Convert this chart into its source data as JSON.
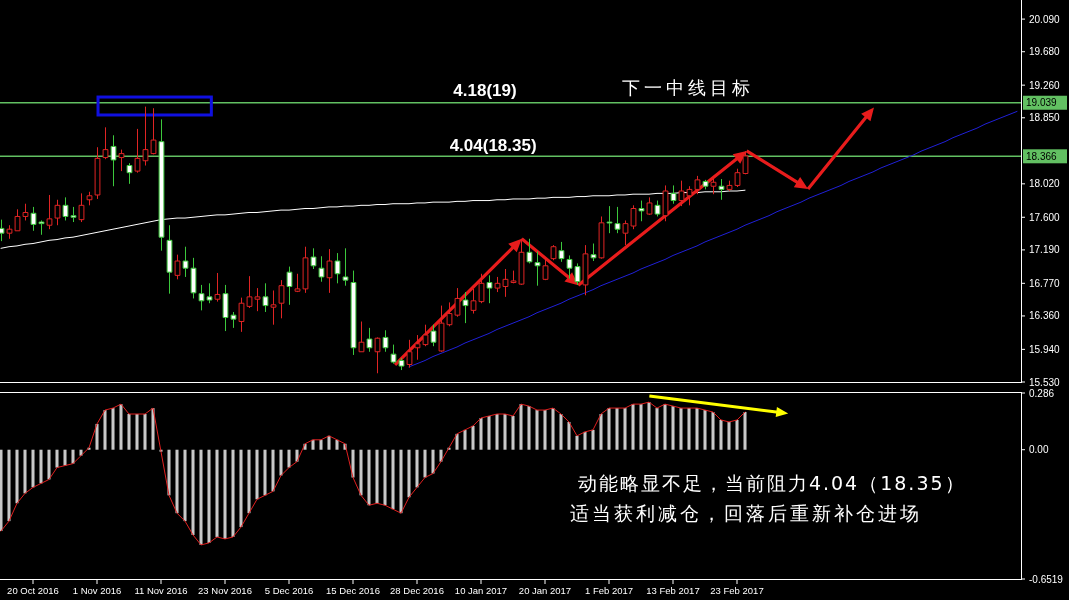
{
  "chart_data": [
    {
      "type": "candlestick",
      "categories": [
        null,
        null,
        null,
        null,
        null,
        null,
        null,
        null,
        null,
        null,
        null,
        null,
        null,
        null,
        null,
        null,
        null,
        null,
        null,
        null,
        null,
        null,
        null,
        null,
        null,
        null,
        null,
        null,
        null,
        null,
        null,
        null,
        null,
        null,
        null,
        null,
        null,
        null,
        null,
        null,
        null,
        null,
        null,
        null,
        null,
        null,
        null,
        null,
        null,
        null,
        null,
        null,
        null,
        null,
        null,
        null,
        null,
        null,
        null,
        null,
        null,
        null,
        null,
        null,
        null,
        null,
        null,
        null,
        null,
        null,
        null,
        null,
        null,
        null,
        null,
        null,
        null,
        null,
        null,
        null,
        null,
        null,
        null,
        null,
        null,
        null,
        null,
        null,
        null,
        null,
        null,
        null,
        null,
        null,
        null,
        null,
        null,
        null,
        null,
        null,
        null,
        null,
        null,
        null,
        null,
        null,
        null,
        null,
        null,
        null,
        null,
        null,
        null,
        null,
        null,
        null,
        null,
        null,
        null,
        null,
        null,
        null,
        null,
        null,
        null,
        null,
        null,
        null
      ],
      "ohlc": [
        [
          17.46,
          17.57,
          17.3,
          17.4
        ],
        [
          17.4,
          17.5,
          17.33,
          17.45
        ],
        [
          17.43,
          17.7,
          17.43,
          17.61
        ],
        [
          17.61,
          17.77,
          17.56,
          17.66
        ],
        [
          17.65,
          17.73,
          17.43,
          17.51
        ],
        [
          17.54,
          17.56,
          17.38,
          17.52
        ],
        [
          17.5,
          17.88,
          17.45,
          17.58
        ],
        [
          17.59,
          17.82,
          17.5,
          17.75
        ],
        [
          17.75,
          17.85,
          17.56,
          17.61
        ],
        [
          17.62,
          17.73,
          17.54,
          17.6
        ],
        [
          17.57,
          17.9,
          17.54,
          17.75
        ],
        [
          17.82,
          17.92,
          17.75,
          17.87
        ],
        [
          17.88,
          18.48,
          17.83,
          18.34
        ],
        [
          18.35,
          18.73,
          18.33,
          18.45
        ],
        [
          18.49,
          18.63,
          17.99,
          18.32
        ],
        [
          18.35,
          18.45,
          18.18,
          18.4
        ],
        [
          18.25,
          18.28,
          18.02,
          18.16
        ],
        [
          18.18,
          18.71,
          18.16,
          18.34
        ],
        [
          18.31,
          18.99,
          18.25,
          18.45
        ],
        [
          18.4,
          18.97,
          18.39,
          18.57
        ],
        [
          18.55,
          18.83,
          17.18,
          17.35
        ],
        [
          17.31,
          17.5,
          16.64,
          16.91
        ],
        [
          16.87,
          17.13,
          16.82,
          17.05
        ],
        [
          17.05,
          17.23,
          16.85,
          16.96
        ],
        [
          16.96,
          17.09,
          16.58,
          16.65
        ],
        [
          16.64,
          16.75,
          16.43,
          16.55
        ],
        [
          16.6,
          16.77,
          16.52,
          16.56
        ],
        [
          16.57,
          16.9,
          16.54,
          16.63
        ],
        [
          16.64,
          16.75,
          16.17,
          16.34
        ],
        [
          16.37,
          16.41,
          16.21,
          16.32
        ],
        [
          16.29,
          16.59,
          16.16,
          16.52
        ],
        [
          16.48,
          16.86,
          16.46,
          16.6
        ],
        [
          16.57,
          16.71,
          16.42,
          16.6
        ],
        [
          16.6,
          16.77,
          16.41,
          16.49
        ],
        [
          16.47,
          16.68,
          16.25,
          16.5
        ],
        [
          16.52,
          16.81,
          16.33,
          16.74
        ],
        [
          16.91,
          16.98,
          16.5,
          16.73
        ],
        [
          16.67,
          16.89,
          16.66,
          16.7
        ],
        [
          16.7,
          17.23,
          16.65,
          17.09
        ],
        [
          17.1,
          17.21,
          16.95,
          16.99
        ],
        [
          16.96,
          17.11,
          16.79,
          16.85
        ],
        [
          16.84,
          17.2,
          16.65,
          17.05
        ],
        [
          17.05,
          17.15,
          16.77,
          16.89
        ],
        [
          16.85,
          17.21,
          16.74,
          16.81
        ],
        [
          16.78,
          16.93,
          15.87,
          15.96
        ],
        [
          15.91,
          16.29,
          15.91,
          16.03
        ],
        [
          16.07,
          16.21,
          15.91,
          15.96
        ],
        [
          15.91,
          16.09,
          15.64,
          16.08
        ],
        [
          16.09,
          16.18,
          15.91,
          15.96
        ],
        [
          15.88,
          16.0,
          15.76,
          15.78
        ],
        [
          15.8,
          15.83,
          15.68,
          15.73
        ],
        [
          15.75,
          16.06,
          15.71,
          15.91
        ],
        [
          15.96,
          16.12,
          15.81,
          16.01
        ],
        [
          16.0,
          16.25,
          15.98,
          16.12
        ],
        [
          16.17,
          16.25,
          15.98,
          16.03
        ],
        [
          15.92,
          16.49,
          15.91,
          16.27
        ],
        [
          16.25,
          16.53,
          16.23,
          16.39
        ],
        [
          16.37,
          16.71,
          16.35,
          16.58
        ],
        [
          16.56,
          16.66,
          16.27,
          16.49
        ],
        [
          16.43,
          16.7,
          16.39,
          16.55
        ],
        [
          16.54,
          16.89,
          16.52,
          16.77
        ],
        [
          16.78,
          16.87,
          16.52,
          16.71
        ],
        [
          16.71,
          16.85,
          16.66,
          16.77
        ],
        [
          16.73,
          16.95,
          16.6,
          16.82
        ],
        [
          16.78,
          16.93,
          16.77,
          16.8
        ],
        [
          16.76,
          17.33,
          16.75,
          17.16
        ],
        [
          17.16,
          17.33,
          17.02,
          17.04
        ],
        [
          17.03,
          17.17,
          16.74,
          16.99
        ],
        [
          16.82,
          17.09,
          16.81,
          16.99
        ],
        [
          17.08,
          17.25,
          17.06,
          17.23
        ],
        [
          17.18,
          17.29,
          17.04,
          17.08
        ],
        [
          17.07,
          17.12,
          16.83,
          16.96
        ],
        [
          16.98,
          17.02,
          16.75,
          16.79
        ],
        [
          16.75,
          17.25,
          16.62,
          17.14
        ],
        [
          17.13,
          17.27,
          17.05,
          17.09
        ],
        [
          17.09,
          17.61,
          17.08,
          17.53
        ],
        [
          17.54,
          17.74,
          17.4,
          17.53
        ],
        [
          17.52,
          17.73,
          17.4,
          17.45
        ],
        [
          17.4,
          17.56,
          17.25,
          17.52
        ],
        [
          17.49,
          17.75,
          17.45,
          17.71
        ],
        [
          17.71,
          17.81,
          17.55,
          17.68
        ],
        [
          17.64,
          17.85,
          17.63,
          17.78
        ],
        [
          17.75,
          17.81,
          17.61,
          17.64
        ],
        [
          17.62,
          18.0,
          17.55,
          17.93
        ],
        [
          17.9,
          18.0,
          17.77,
          17.81
        ],
        [
          17.81,
          18.06,
          17.74,
          17.93
        ],
        [
          17.87,
          17.99,
          17.75,
          17.95
        ],
        [
          17.95,
          18.12,
          17.89,
          18.07
        ],
        [
          18.05,
          18.07,
          17.95,
          17.99
        ],
        [
          17.99,
          18.09,
          17.89,
          18.04
        ],
        [
          17.99,
          18.08,
          17.82,
          17.95
        ],
        [
          17.95,
          18.06,
          17.93,
          18.0
        ],
        [
          18.0,
          18.21,
          17.98,
          18.16
        ],
        [
          18.15,
          18.43,
          18.14,
          18.37
        ],
        null,
        null,
        null,
        null,
        null,
        null,
        null,
        null,
        null,
        null,
        null,
        null,
        null,
        null,
        null,
        null,
        null,
        null,
        null,
        null,
        null,
        null,
        null,
        null,
        null,
        null,
        null,
        null,
        null,
        null,
        null,
        null,
        null,
        null
      ],
      "colors": [
        "#3cc83c",
        "#e02424",
        "#e02424",
        "#e02424",
        "#3cc83c",
        "#3cc83c",
        "#e02424",
        "#e02424",
        "#3cc83c",
        "#3cc83c",
        "#e02424",
        "#e02424",
        "#e02424",
        "#e02424",
        "#3cc83c",
        "#e02424",
        "#3cc83c",
        "#e02424",
        "#e02424",
        "#e02424",
        "#3cc83c",
        "#3cc83c",
        "#e02424",
        "#3cc83c",
        "#3cc83c",
        "#3cc83c",
        "#3cc83c",
        "#e02424",
        "#3cc83c",
        "#3cc83c",
        "#e02424",
        "#e02424",
        "#e02424",
        "#3cc83c",
        "#e02424",
        "#e02424",
        "#3cc83c",
        "#e02424",
        "#e02424",
        "#3cc83c",
        "#3cc83c",
        "#e02424",
        "#3cc83c",
        "#3cc83c",
        "#3cc83c",
        "#e02424",
        "#3cc83c",
        "#e02424",
        "#3cc83c",
        "#3cc83c",
        "#3cc83c",
        "#e02424",
        "#e02424",
        "#e02424",
        "#3cc83c",
        "#e02424",
        "#e02424",
        "#e02424",
        "#3cc83c",
        "#e02424",
        "#e02424",
        "#3cc83c",
        "#e02424",
        "#e02424",
        "#e02424",
        "#e02424",
        "#3cc83c",
        "#3cc83c",
        "#e02424",
        "#e02424",
        "#3cc83c",
        "#3cc83c",
        "#3cc83c",
        "#e02424",
        "#3cc83c",
        "#e02424",
        "#3cc83c",
        "#3cc83c",
        "#e02424",
        "#e02424",
        "#3cc83c",
        "#e02424",
        "#3cc83c",
        "#e02424",
        "#3cc83c",
        "#e02424",
        "#e02424",
        "#e02424",
        "#3cc83c",
        "#e02424",
        "#3cc83c",
        "#e02424",
        "#e02424",
        "#e02424",
        null,
        null,
        null,
        null,
        null,
        null,
        null,
        null,
        null,
        null,
        null,
        null,
        null,
        null,
        null,
        null,
        null,
        null,
        null,
        null,
        null,
        null,
        null,
        null,
        null,
        null,
        null,
        null,
        null,
        null,
        null,
        null,
        null,
        null
      ],
      "series": [
        {
          "type": "line",
          "color": "#ffffff",
          "values": [
            17.21,
            17.23,
            17.24,
            17.26,
            17.27,
            17.29,
            17.31,
            17.32,
            17.34,
            17.35,
            17.37,
            17.39,
            17.41,
            17.43,
            17.45,
            17.47,
            17.49,
            17.51,
            17.53,
            17.55,
            17.57,
            17.58,
            17.59,
            17.59,
            17.6,
            17.61,
            17.62,
            17.63,
            17.63,
            17.64,
            17.65,
            17.66,
            17.66,
            17.67,
            17.68,
            17.69,
            17.69,
            17.7,
            17.71,
            17.71,
            17.72,
            17.73,
            17.73,
            17.74,
            17.74,
            17.75,
            17.75,
            17.76,
            17.76,
            17.77,
            17.77,
            17.77,
            17.78,
            17.78,
            17.79,
            17.79,
            17.79,
            17.8,
            17.8,
            17.81,
            17.81,
            17.81,
            17.82,
            17.82,
            17.83,
            17.83,
            17.83,
            17.84,
            17.84,
            17.85,
            17.85,
            17.85,
            17.86,
            17.86,
            17.87,
            17.87,
            17.87,
            17.88,
            17.88,
            17.89,
            17.89,
            17.89,
            17.9,
            17.9,
            17.9,
            17.91,
            17.91,
            17.91,
            17.92,
            17.92,
            17.92,
            17.93,
            17.93,
            17.94,
            null,
            null,
            null,
            null,
            null,
            null,
            null,
            null,
            null,
            null,
            null,
            null,
            null,
            null,
            null,
            null,
            null,
            null,
            null,
            null,
            null,
            null,
            null,
            null,
            null,
            null,
            null,
            null,
            null,
            null,
            null,
            null,
            null,
            null
          ]
        },
        {
          "type": "line",
          "color": "#2020d8",
          "values": [
            null,
            null,
            null,
            null,
            null,
            null,
            null,
            null,
            null,
            null,
            null,
            null,
            null,
            null,
            null,
            null,
            null,
            null,
            null,
            null,
            null,
            null,
            null,
            null,
            null,
            null,
            null,
            null,
            null,
            null,
            null,
            null,
            null,
            null,
            null,
            null,
            null,
            null,
            null,
            null,
            null,
            null,
            null,
            null,
            null,
            null,
            null,
            null,
            null,
            null,
            null,
            15.72,
            15.76,
            15.8,
            15.85,
            15.89,
            15.93,
            15.97,
            16.02,
            16.06,
            16.1,
            16.14,
            16.19,
            16.23,
            16.27,
            16.31,
            16.35,
            16.4,
            16.44,
            16.48,
            16.52,
            16.57,
            16.61,
            16.65,
            16.69,
            16.74,
            16.78,
            16.82,
            16.86,
            16.9,
            16.95,
            16.99,
            17.03,
            17.07,
            17.12,
            17.16,
            17.2,
            17.24,
            17.29,
            17.33,
            17.37,
            17.41,
            17.45,
            17.5,
            17.54,
            17.58,
            17.62,
            17.67,
            17.71,
            17.75,
            17.79,
            17.84,
            17.88,
            17.92,
            17.96,
            18.0,
            18.05,
            18.09,
            18.13,
            18.17,
            18.22,
            18.26,
            18.3,
            18.34,
            18.38,
            18.43,
            18.47,
            18.51,
            18.55,
            18.6,
            18.64,
            18.68,
            18.72,
            18.77,
            18.81,
            18.85,
            18.89,
            18.93
          ]
        }
      ],
      "ylim": [
        15.53,
        20.33
      ],
      "yticks": [
        {
          "value": 15.53,
          "label": "15.530"
        },
        {
          "value": 15.94,
          "label": "15.940"
        },
        {
          "value": 16.36,
          "label": "16.360"
        },
        {
          "value": 16.77,
          "label": "16.770"
        },
        {
          "value": 17.19,
          "label": "17.190"
        },
        {
          "value": 17.6,
          "label": "17.600"
        },
        {
          "value": 18.02,
          "label": "18.020"
        },
        {
          "value": 18.85,
          "label": "18.850"
        },
        {
          "value": 19.26,
          "label": "19.260"
        },
        {
          "value": 19.68,
          "label": "19.680"
        },
        {
          "value": 20.09,
          "label": "20.090"
        }
      ],
      "tick_labels": "y",
      "ref_lines": [
        {
          "axis": "y",
          "value": 19.039,
          "label": "19.039",
          "color": "#62c062"
        },
        {
          "axis": "y",
          "value": 18.366,
          "label": "18.366",
          "color": "#62c062"
        }
      ],
      "annotations": [
        "4.18(19)",
        "4.04(18.35)",
        "下一中线目标"
      ]
    },
    {
      "type": "bar",
      "categories": [
        null,
        null,
        null,
        null,
        "20 Oct 2016",
        null,
        null,
        null,
        null,
        null,
        null,
        null,
        "1 Nov 2016",
        null,
        null,
        null,
        null,
        null,
        null,
        null,
        "11 Nov 2016",
        null,
        null,
        null,
        null,
        null,
        null,
        null,
        "23 Nov 2016",
        null,
        null,
        null,
        null,
        null,
        null,
        null,
        "5 Dec 2016",
        null,
        null,
        null,
        null,
        null,
        null,
        null,
        "15 Dec 2016",
        null,
        null,
        null,
        null,
        null,
        null,
        null,
        "28 Dec 2016",
        null,
        null,
        null,
        null,
        null,
        null,
        null,
        "10 Jan 2017",
        null,
        null,
        null,
        null,
        null,
        null,
        null,
        "20 Jan 2017",
        null,
        null,
        null,
        null,
        null,
        null,
        null,
        "1 Feb 2017",
        null,
        null,
        null,
        null,
        null,
        null,
        null,
        "13 Feb 2017",
        null,
        null,
        null,
        null,
        null,
        null,
        null,
        "23 Feb 2017",
        null,
        null,
        null,
        null,
        null,
        null,
        null,
        null,
        null,
        null,
        null,
        null,
        null,
        null,
        null,
        null,
        null,
        null,
        null,
        null,
        null,
        null,
        null,
        null,
        null,
        null,
        null,
        null,
        null,
        null,
        null,
        null,
        null,
        null,
        null
      ],
      "series": [
        {
          "type": "bar",
          "color": "#c8c8c8",
          "values": [
            -0.41,
            -0.36,
            -0.27,
            -0.22,
            -0.19,
            -0.17,
            -0.15,
            -0.09,
            -0.08,
            -0.07,
            -0.03,
            0.01,
            0.13,
            0.2,
            0.21,
            0.23,
            0.18,
            0.18,
            0.18,
            0.21,
            -0.01,
            -0.23,
            -0.32,
            -0.36,
            -0.43,
            -0.48,
            -0.47,
            -0.44,
            -0.45,
            -0.44,
            -0.39,
            -0.32,
            -0.25,
            -0.23,
            -0.21,
            -0.13,
            -0.09,
            -0.06,
            0.03,
            0.05,
            0.05,
            0.07,
            0.05,
            0.03,
            -0.14,
            -0.23,
            -0.28,
            -0.27,
            -0.28,
            -0.3,
            -0.32,
            -0.24,
            -0.19,
            -0.14,
            -0.12,
            -0.06,
            0.01,
            0.08,
            0.1,
            0.12,
            0.16,
            0.17,
            0.18,
            0.18,
            0.17,
            0.23,
            0.22,
            0.2,
            0.2,
            0.21,
            0.18,
            0.14,
            0.07,
            0.09,
            0.1,
            0.18,
            0.21,
            0.21,
            0.21,
            0.23,
            0.23,
            0.24,
            0.21,
            0.23,
            0.22,
            0.21,
            0.21,
            0.21,
            0.2,
            0.19,
            0.15,
            0.14,
            0.15,
            0.19,
            null,
            null,
            null,
            null,
            null,
            null,
            null,
            null,
            null,
            null,
            null,
            null,
            null,
            null,
            null,
            null,
            null,
            null,
            null,
            null,
            null,
            null,
            null,
            null,
            null,
            null,
            null,
            null,
            null,
            null,
            null,
            null,
            null,
            null
          ]
        },
        {
          "type": "line",
          "color": "#e02020",
          "values": [
            -0.41,
            -0.36,
            -0.27,
            -0.22,
            -0.19,
            -0.17,
            -0.15,
            -0.09,
            -0.08,
            -0.07,
            -0.03,
            0.01,
            0.13,
            0.2,
            0.21,
            0.23,
            0.18,
            0.18,
            0.18,
            0.21,
            -0.01,
            -0.23,
            -0.32,
            -0.36,
            -0.43,
            -0.48,
            -0.47,
            -0.44,
            -0.45,
            -0.44,
            -0.39,
            -0.32,
            -0.25,
            -0.23,
            -0.21,
            -0.13,
            -0.09,
            -0.06,
            0.03,
            0.05,
            0.05,
            0.07,
            0.05,
            0.03,
            -0.14,
            -0.23,
            -0.28,
            -0.27,
            -0.28,
            -0.3,
            -0.32,
            -0.24,
            -0.19,
            -0.14,
            -0.12,
            -0.06,
            0.01,
            0.08,
            0.1,
            0.12,
            0.16,
            0.17,
            0.18,
            0.18,
            0.17,
            0.23,
            0.22,
            0.2,
            0.2,
            0.21,
            0.18,
            0.14,
            0.07,
            0.09,
            0.1,
            0.18,
            0.21,
            0.21,
            0.21,
            0.23,
            0.23,
            0.24,
            0.21,
            0.23,
            0.22,
            0.21,
            0.21,
            0.21,
            0.2,
            0.19,
            0.15,
            0.14,
            0.15,
            0.19,
            null,
            null,
            null,
            null,
            null,
            null,
            null,
            null,
            null,
            null,
            null,
            null,
            null,
            null,
            null,
            null,
            null,
            null,
            null,
            null,
            null,
            null,
            null,
            null,
            null,
            null,
            null,
            null,
            null,
            null,
            null,
            null,
            null,
            null
          ]
        }
      ],
      "ylim": [
        -0.6519,
        0.286
      ],
      "yticks": [
        0.286,
        {
          "value": 0,
          "label": "0.00"
        },
        -0.6519
      ],
      "annotations": [
        "动能略显不足，当前阻力4.04（18.35）",
        "适当获利减仓，回落后重新补仓进场"
      ]
    }
  ]
}
